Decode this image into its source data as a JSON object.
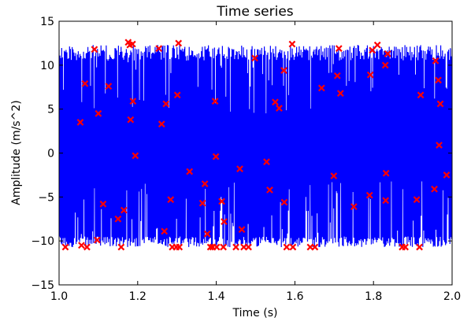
{
  "chart_data": {
    "type": "line",
    "title": "Time series",
    "xlabel": "Time (s)",
    "ylabel": "Amplitude (m/s^2)",
    "xlim": [
      1.0,
      2.0
    ],
    "ylim": [
      -15,
      15
    ],
    "xticks": [
      "1.0",
      "1.2",
      "1.4",
      "1.6",
      "1.8",
      "2.0"
    ],
    "yticks": [
      "−15",
      "−10",
      "−5",
      "0",
      "5",
      "10",
      "15"
    ],
    "grid": false,
    "legend": "none",
    "series": [
      {
        "type": "line",
        "color": "#0000ff",
        "description": "dense oscillating signal",
        "envelope_upper": 12.3,
        "envelope_lower": -10.7
      },
      {
        "type": "scatter",
        "color": "#ff0000",
        "marker": "x",
        "points": [
          [
            1.016,
            -10.7
          ],
          [
            1.054,
            3.5
          ],
          [
            1.057,
            -10.5
          ],
          [
            1.066,
            7.9
          ],
          [
            1.071,
            -10.7
          ],
          [
            1.09,
            11.8
          ],
          [
            1.097,
            -9.9
          ],
          [
            1.1,
            4.5
          ],
          [
            1.112,
            -5.8
          ],
          [
            1.126,
            7.6
          ],
          [
            1.15,
            -7.5
          ],
          [
            1.158,
            -10.7
          ],
          [
            1.165,
            -6.5
          ],
          [
            1.176,
            12.6
          ],
          [
            1.18,
            12.3
          ],
          [
            1.182,
            3.8
          ],
          [
            1.187,
            12.4
          ],
          [
            1.188,
            5.9
          ],
          [
            1.194,
            -0.3
          ],
          [
            1.254,
            11.9
          ],
          [
            1.261,
            3.3
          ],
          [
            1.268,
            -8.9
          ],
          [
            1.272,
            5.6
          ],
          [
            1.284,
            -5.3
          ],
          [
            1.288,
            -10.7
          ],
          [
            1.298,
            -10.7
          ],
          [
            1.301,
            6.6
          ],
          [
            1.304,
            12.5
          ],
          [
            1.306,
            -10.7
          ],
          [
            1.332,
            -2.1
          ],
          [
            1.365,
            -5.7
          ],
          [
            1.371,
            -3.5
          ],
          [
            1.377,
            -9.2
          ],
          [
            1.385,
            -10.7
          ],
          [
            1.391,
            -10.7
          ],
          [
            1.397,
            5.9
          ],
          [
            1.399,
            -0.4
          ],
          [
            1.401,
            -10.7
          ],
          [
            1.414,
            -5.5
          ],
          [
            1.418,
            -10.7
          ],
          [
            1.42,
            -7.8
          ],
          [
            1.45,
            -10.7
          ],
          [
            1.46,
            -1.8
          ],
          [
            1.465,
            -8.7
          ],
          [
            1.47,
            -10.7
          ],
          [
            1.482,
            -10.7
          ],
          [
            1.498,
            10.8
          ],
          [
            1.528,
            -1.0
          ],
          [
            1.536,
            -4.2
          ],
          [
            1.55,
            5.8
          ],
          [
            1.56,
            5.1
          ],
          [
            1.572,
            9.4
          ],
          [
            1.573,
            -5.6
          ],
          [
            1.579,
            -10.7
          ],
          [
            1.593,
            12.4
          ],
          [
            1.595,
            -10.7
          ],
          [
            1.639,
            -10.7
          ],
          [
            1.651,
            -10.7
          ],
          [
            1.668,
            7.4
          ],
          [
            1.699,
            -2.6
          ],
          [
            1.708,
            8.8
          ],
          [
            1.712,
            11.9
          ],
          [
            1.716,
            6.8
          ],
          [
            1.75,
            -6.1
          ],
          [
            1.79,
            -4.8
          ],
          [
            1.792,
            8.9
          ],
          [
            1.797,
            11.7
          ],
          [
            1.81,
            12.3
          ],
          [
            1.83,
            10.0
          ],
          [
            1.831,
            -5.4
          ],
          [
            1.832,
            -2.3
          ],
          [
            1.836,
            11.3
          ],
          [
            1.873,
            -10.7
          ],
          [
            1.881,
            -10.7
          ],
          [
            1.91,
            -5.3
          ],
          [
            1.917,
            -10.7
          ],
          [
            1.92,
            6.6
          ],
          [
            1.955,
            -4.1
          ],
          [
            1.958,
            10.5
          ],
          [
            1.965,
            8.3
          ],
          [
            1.967,
            0.9
          ],
          [
            1.97,
            5.6
          ],
          [
            1.986,
            -2.5
          ]
        ]
      }
    ]
  }
}
